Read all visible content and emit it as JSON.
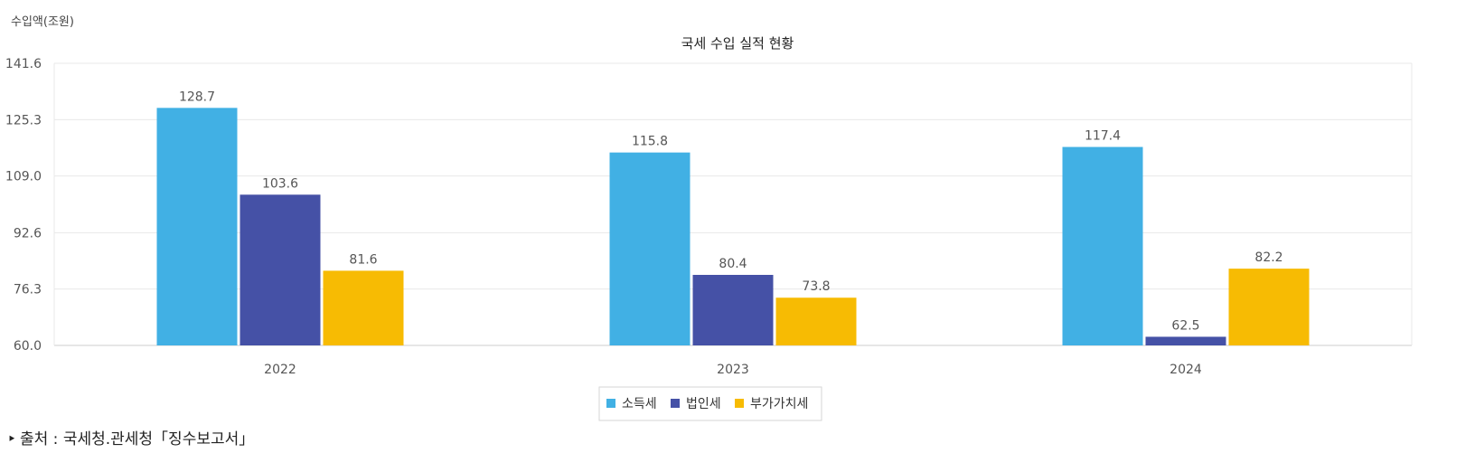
{
  "chart_data": {
    "type": "bar",
    "title": "국세 수입 실적 현황",
    "ylabel": "수입액(조원)",
    "xlabel": "",
    "categories": [
      "2022",
      "2023",
      "2024"
    ],
    "series": [
      {
        "name": "소득세",
        "values": [
          128.7,
          115.8,
          117.4
        ],
        "color": "#41b0e4"
      },
      {
        "name": "법인세",
        "values": [
          103.6,
          80.4,
          62.5
        ],
        "color": "#4551a6"
      },
      {
        "name": "부가가치세",
        "values": [
          81.6,
          73.8,
          82.2
        ],
        "color": "#f7bb03"
      }
    ],
    "ylim": [
      60.0,
      141.6
    ],
    "yticks": [
      "60.0",
      "76.3",
      "92.6",
      "109.0",
      "125.3",
      "141.6"
    ],
    "grid": true,
    "legend_position": "bottom-center"
  },
  "source": {
    "marker": "‣",
    "text": "출처 : 국세청.관세청「징수보고서」"
  }
}
